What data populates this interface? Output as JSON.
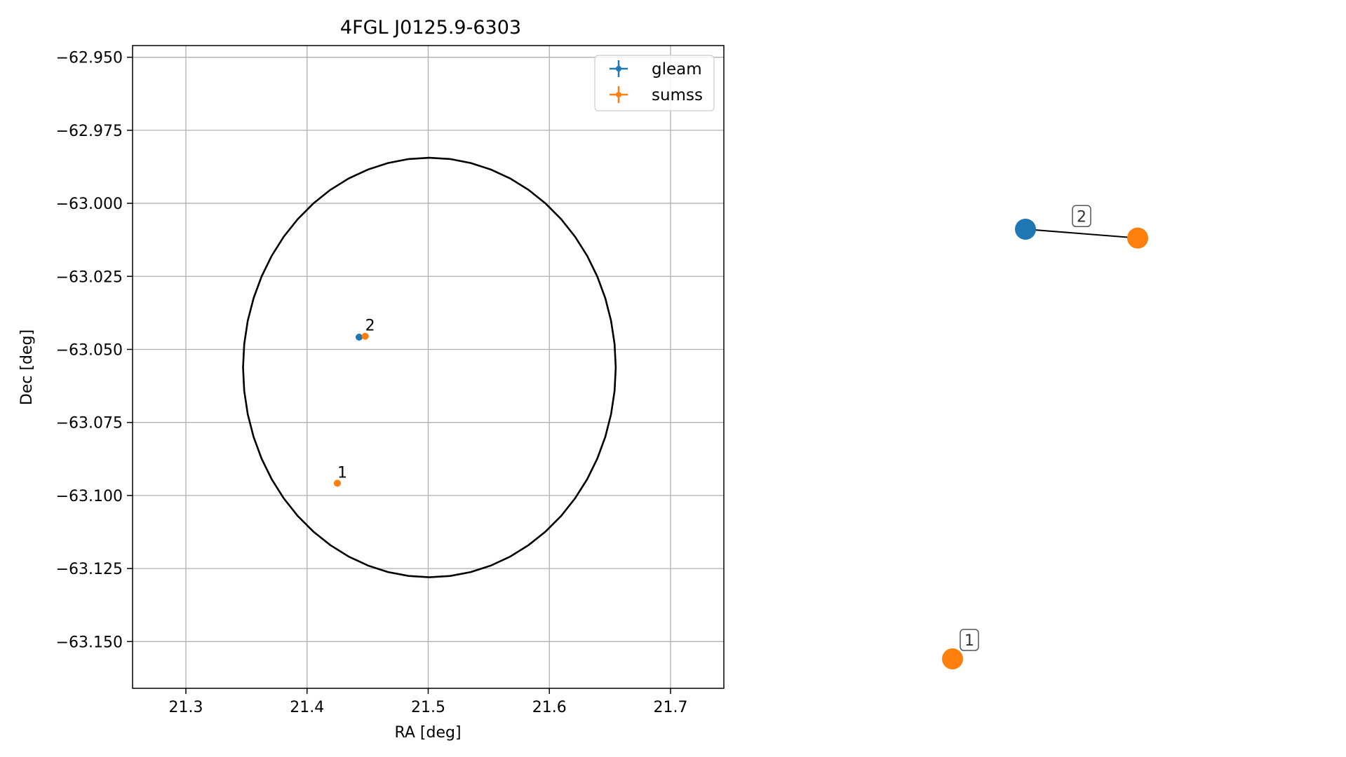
{
  "colors": {
    "gleam": "#1f77b4",
    "sumss": "#ff7f0e",
    "circle": "#000000",
    "grid": "#b0b0b0",
    "edge": "#000000",
    "node_label_border": "#555555"
  },
  "chart_data": [
    {
      "type": "scatter",
      "title": "4FGL J0125.9-6303",
      "xlabel": "RA [deg]",
      "ylabel": "Dec [deg]",
      "xlim": [
        21.256,
        21.744
      ],
      "ylim": [
        -63.166,
        -62.946
      ],
      "xticks": [
        21.3,
        21.4,
        21.5,
        21.6,
        21.7
      ],
      "xtick_labels": [
        "21.3",
        "21.4",
        "21.5",
        "21.6",
        "21.7"
      ],
      "yticks": [
        -62.95,
        -62.975,
        -63.0,
        -63.025,
        -63.05,
        -63.075,
        -63.1,
        -63.125,
        -63.15
      ],
      "ytick_labels": [
        "−62.950",
        "−62.975",
        "−63.000",
        "−63.025",
        "−63.050",
        "−63.075",
        "−63.100",
        "−63.125",
        "−63.150"
      ],
      "grid": true,
      "legend_position": "top-right",
      "series": [
        {
          "name": "gleam",
          "color_key": "gleam",
          "points": [
            {
              "x": 21.443,
              "y": -63.0458,
              "label": ""
            }
          ]
        },
        {
          "name": "sumss",
          "color_key": "sumss",
          "points": [
            {
              "x": 21.448,
              "y": -63.0455,
              "label": "2"
            },
            {
              "x": 21.425,
              "y": -63.0958,
              "label": "1"
            }
          ]
        }
      ],
      "ellipse": {
        "center_ra": 21.501,
        "center_dec": -63.0562,
        "semi_ra": 0.1538,
        "semi_dec": 0.0718,
        "segments": 56
      }
    },
    {
      "type": "scatter",
      "title": "",
      "grid": false,
      "nodes": [
        {
          "id": "g2",
          "color_key": "gleam",
          "x": 0.0,
          "y": 0.97
        },
        {
          "id": "s2",
          "color_key": "sumss",
          "x": 1.0,
          "y": 0.95
        },
        {
          "id": "s1",
          "color_key": "sumss",
          "x": -0.65,
          "y": 0.0
        }
      ],
      "edges": [
        {
          "source": "g2",
          "target": "s2",
          "label": "2"
        }
      ],
      "node_labels": [
        {
          "node": "s1",
          "text": "1"
        }
      ]
    }
  ]
}
